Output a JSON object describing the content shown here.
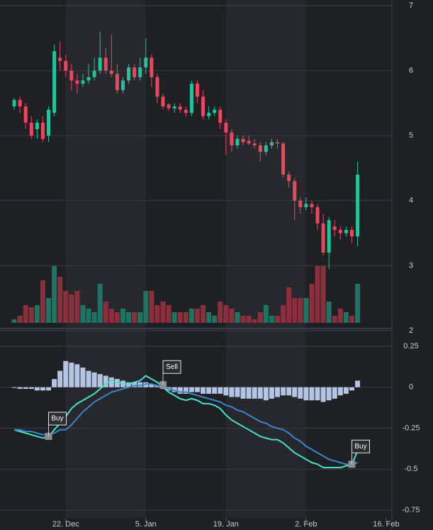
{
  "chart_data": [
    {
      "type": "candlestick",
      "up_color": "#22c39a",
      "down_color": "#e8485e",
      "volume_up_color": "#1d7463",
      "volume_down_color": "#8c2f3c",
      "ylim": [
        2,
        7
      ],
      "yticks": [
        2,
        3,
        4,
        5,
        6,
        7
      ],
      "grid": true,
      "x": [
        -9,
        -8,
        -7,
        -6,
        -5,
        -4,
        -3,
        -2,
        -1,
        0,
        1,
        2,
        3,
        4,
        5,
        6,
        7,
        8,
        9,
        10,
        11,
        12,
        13,
        14,
        15,
        16,
        17,
        18,
        19,
        20,
        21,
        22,
        23,
        24,
        25,
        26,
        27,
        28,
        29,
        30,
        31,
        32,
        33,
        34,
        35,
        36,
        37,
        38,
        39,
        40,
        41,
        42,
        43,
        44,
        45,
        46,
        47,
        48,
        49,
        50,
        51
      ],
      "open": [
        5.45,
        5.55,
        5.45,
        5.2,
        5.1,
        5.2,
        5.0,
        5.35,
        6.2,
        6.15,
        6.0,
        5.85,
        5.8,
        5.85,
        5.9,
        6.0,
        6.2,
        6.0,
        5.95,
        5.7,
        5.85,
        6.05,
        5.9,
        6.05,
        6.2,
        5.9,
        5.6,
        5.48,
        5.42,
        5.45,
        5.4,
        5.35,
        5.8,
        5.6,
        5.3,
        5.35,
        5.4,
        5.2,
        5.05,
        4.85,
        4.95,
        4.92,
        4.88,
        4.85,
        4.75,
        4.85,
        4.9,
        4.88,
        4.4,
        4.3,
        4.0,
        3.9,
        3.95,
        3.9,
        3.65,
        3.2,
        3.6,
        3.55,
        3.5,
        3.55,
        3.45
      ],
      "high": [
        5.58,
        5.6,
        5.5,
        5.3,
        5.25,
        5.3,
        5.45,
        6.4,
        6.45,
        6.25,
        6.1,
        5.95,
        5.95,
        6.1,
        6.2,
        6.6,
        6.35,
        6.55,
        6.1,
        5.9,
        6.1,
        6.1,
        6.2,
        6.5,
        6.25,
        5.95,
        5.65,
        5.5,
        5.5,
        5.5,
        5.45,
        5.85,
        5.85,
        5.7,
        5.45,
        5.45,
        5.45,
        5.25,
        5.1,
        5.0,
        5.0,
        5.0,
        4.95,
        4.9,
        4.9,
        4.95,
        4.95,
        4.9,
        4.45,
        4.35,
        4.05,
        4.05,
        4.0,
        3.95,
        3.8,
        3.75,
        3.7,
        3.6,
        3.6,
        3.6,
        4.6
      ],
      "low": [
        5.4,
        5.35,
        5.1,
        4.95,
        4.95,
        4.9,
        4.9,
        5.3,
        6.0,
        5.9,
        5.7,
        5.65,
        5.75,
        5.8,
        5.85,
        5.95,
        5.95,
        5.9,
        5.65,
        5.65,
        5.8,
        5.85,
        5.85,
        5.95,
        5.75,
        5.5,
        5.4,
        5.38,
        5.35,
        5.35,
        5.3,
        5.3,
        5.5,
        5.25,
        5.25,
        5.3,
        5.1,
        4.7,
        4.75,
        4.8,
        4.85,
        4.85,
        4.8,
        4.6,
        4.7,
        4.8,
        4.8,
        4.35,
        4.2,
        3.7,
        3.8,
        3.85,
        3.8,
        3.55,
        3.15,
        2.95,
        3.45,
        3.4,
        3.45,
        3.35,
        3.3
      ],
      "close": [
        5.55,
        5.45,
        5.2,
        5.0,
        5.2,
        4.95,
        5.4,
        6.3,
        6.15,
        6.0,
        5.85,
        5.8,
        5.85,
        5.9,
        6.0,
        6.2,
        6.0,
        5.95,
        5.7,
        5.85,
        6.05,
        5.9,
        6.05,
        6.2,
        5.9,
        5.6,
        5.45,
        5.42,
        5.45,
        5.4,
        5.35,
        5.8,
        5.6,
        5.3,
        5.35,
        5.4,
        5.2,
        5.05,
        4.85,
        4.95,
        4.9,
        4.88,
        4.85,
        4.75,
        4.85,
        4.9,
        4.88,
        4.4,
        4.3,
        4.0,
        3.9,
        3.95,
        3.9,
        3.65,
        3.2,
        3.7,
        3.55,
        3.5,
        3.55,
        3.45,
        4.4
      ],
      "volume": [
        5,
        10,
        25,
        22,
        25,
        60,
        35,
        80,
        65,
        45,
        40,
        45,
        25,
        20,
        15,
        55,
        30,
        20,
        15,
        20,
        15,
        15,
        15,
        45,
        45,
        25,
        30,
        25,
        15,
        15,
        15,
        20,
        20,
        25,
        15,
        10,
        30,
        25,
        20,
        15,
        10,
        10,
        5,
        15,
        25,
        10,
        10,
        25,
        50,
        35,
        35,
        35,
        55,
        80,
        80,
        30,
        10,
        20,
        15,
        10,
        55
      ]
    },
    {
      "type": "line",
      "xlim": [
        -10,
        57
      ],
      "xticks": [
        {
          "value": 0,
          "label": "22. Dec"
        },
        {
          "value": 14,
          "label": "5. Jan"
        },
        {
          "value": 28,
          "label": "19. Jan"
        },
        {
          "value": 42,
          "label": "2. Feb"
        },
        {
          "value": 56,
          "label": "16. Feb"
        }
      ],
      "ylim": [
        -0.75,
        0.25
      ],
      "yticks": [
        0.25,
        0,
        -0.25,
        -0.5,
        -0.75
      ],
      "grid": true,
      "histogram": {
        "color": "#b4c4e4",
        "values": [
          0,
          -0.01,
          -0.01,
          -0.01,
          -0.02,
          -0.02,
          -0.02,
          0.05,
          0.1,
          0.16,
          0.15,
          0.14,
          0.12,
          0.1,
          0.09,
          0.08,
          0.07,
          0.06,
          0.05,
          0.04,
          0.03,
          0.03,
          0.03,
          0.03,
          0.02,
          0.01,
          -0.01,
          -0.02,
          -0.03,
          -0.04,
          -0.04,
          -0.03,
          -0.03,
          -0.04,
          -0.04,
          -0.04,
          -0.04,
          -0.05,
          -0.06,
          -0.06,
          -0.07,
          -0.07,
          -0.07,
          -0.07,
          -0.08,
          -0.07,
          -0.06,
          -0.05,
          -0.05,
          -0.06,
          -0.07,
          -0.08,
          -0.08,
          -0.08,
          -0.09,
          -0.08,
          -0.07,
          -0.05,
          -0.04,
          -0.02,
          0.04
        ]
      },
      "series": [
        {
          "color": "#45e3c6",
          "values": [
            -0.26,
            -0.27,
            -0.28,
            -0.29,
            -0.3,
            -0.31,
            -0.3,
            -0.26,
            -0.22,
            -0.18,
            -0.13,
            -0.1,
            -0.08,
            -0.06,
            -0.04,
            -0.01,
            0.02,
            0.04,
            0.03,
            0.02,
            0.02,
            0.03,
            0.04,
            0.07,
            0.05,
            0.03,
            0.0,
            -0.03,
            -0.05,
            -0.07,
            -0.08,
            -0.07,
            -0.08,
            -0.1,
            -0.1,
            -0.11,
            -0.13,
            -0.17,
            -0.2,
            -0.22,
            -0.24,
            -0.26,
            -0.28,
            -0.3,
            -0.31,
            -0.32,
            -0.32,
            -0.34,
            -0.37,
            -0.4,
            -0.42,
            -0.44,
            -0.46,
            -0.47,
            -0.49,
            -0.49,
            -0.49,
            -0.49,
            -0.48,
            -0.47,
            -0.39
          ]
        },
        {
          "color": "#3f83c8",
          "values": [
            -0.26,
            -0.26,
            -0.27,
            -0.27,
            -0.28,
            -0.29,
            -0.29,
            -0.28,
            -0.26,
            -0.26,
            -0.23,
            -0.19,
            -0.15,
            -0.12,
            -0.09,
            -0.07,
            -0.05,
            -0.03,
            -0.02,
            -0.01,
            0.0,
            0.01,
            0.01,
            0.02,
            0.02,
            0.01,
            0.0,
            -0.01,
            -0.02,
            -0.03,
            -0.03,
            -0.04,
            -0.05,
            -0.06,
            -0.07,
            -0.08,
            -0.09,
            -0.11,
            -0.12,
            -0.14,
            -0.15,
            -0.17,
            -0.19,
            -0.21,
            -0.22,
            -0.24,
            -0.25,
            -0.26,
            -0.28,
            -0.31,
            -0.33,
            -0.36,
            -0.38,
            -0.4,
            -0.42,
            -0.44,
            -0.45,
            -0.46,
            -0.47,
            -0.47,
            -0.46
          ]
        }
      ],
      "annotations": [
        {
          "label": "Buy",
          "x": -3,
          "y": -0.3
        },
        {
          "label": "Sell",
          "x": 17,
          "y": 0.015
        },
        {
          "label": "Buy",
          "x": 50,
          "y": -0.47
        }
      ]
    }
  ]
}
